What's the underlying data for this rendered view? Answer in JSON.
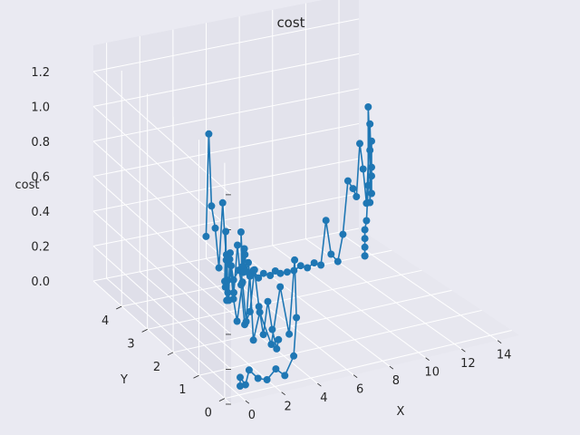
{
  "chart_data": {
    "type": "line3d",
    "title": "cost",
    "xlabel": "X",
    "ylabel": "Y",
    "zlabel": "cost",
    "x_ticks": [
      "0",
      "2",
      "4",
      "6",
      "8",
      "10",
      "12",
      "14"
    ],
    "y_ticks": [
      "0",
      "1",
      "2",
      "3",
      "4"
    ],
    "z_ticks": [
      "0.0",
      "0.2",
      "0.4",
      "0.6",
      "0.8",
      "1.0",
      "1.2"
    ],
    "xlim": [
      -0.8,
      15.2
    ],
    "ylim": [
      -0.25,
      5.1
    ],
    "zlim": [
      0,
      1.35
    ],
    "grid": true,
    "colors": {
      "line": "#1f77b4",
      "pane_back": "#e3e3ec",
      "pane_side": "#dfdfe9",
      "pane_floor": "#e7e7ef",
      "grid": "#ffffff",
      "background": "#eaeaf2"
    },
    "series": [
      {
        "x": [
          0.5,
          0.5,
          0.8,
          1.0,
          1.5,
          2.0,
          2.5,
          3.0,
          3.5,
          3.8,
          4.0,
          4.0,
          3.8,
          3.6,
          3.4,
          3.5,
          3.6,
          3.7,
          3.8,
          3.8,
          3.9,
          4.0,
          4.1,
          4.2,
          4.3,
          4.4,
          4.5,
          4.6,
          4.7,
          4.8,
          5.0,
          5.2,
          5.5,
          5.8,
          6.0,
          6.1,
          6.2,
          6.3,
          6.4,
          6.5,
          6.6,
          6.7,
          6.8,
          7.0,
          7.3,
          7.6,
          8.0,
          8.3,
          8.6,
          9.0,
          9.4,
          9.8,
          10.2,
          10.6,
          11.0,
          11.3,
          11.6,
          12.0,
          12.3,
          12.6,
          12.9,
          13.1,
          13.3,
          13.5,
          13.7,
          13.9,
          14.0,
          14.0,
          14.0,
          14.0,
          13.9,
          13.9,
          13.8,
          13.8,
          13.7,
          13.6,
          13.6,
          13.6,
          13.6,
          13.6
        ],
        "y": [
          0.3,
          0.3,
          0.3,
          0.3,
          0.3,
          0.3,
          0.3,
          0.3,
          0.3,
          0.4,
          0.6,
          0.8,
          1.0,
          1.2,
          1.5,
          1.8,
          2.0,
          2.2,
          2.4,
          2.6,
          2.8,
          3.0,
          3.1,
          3.2,
          3.3,
          3.4,
          3.5,
          3.5,
          3.6,
          3.6,
          3.7,
          3.7,
          3.8,
          3.8,
          3.8,
          3.9,
          3.9,
          3.9,
          4.0,
          4.0,
          4.0,
          4.0,
          4.0,
          4.0,
          4.0,
          4.0,
          4.0,
          4.0,
          4.0,
          4.0,
          4.0,
          4.0,
          4.0,
          4.0,
          4.0,
          4.0,
          4.0,
          4.0,
          4.0,
          4.0,
          4.0,
          4.0,
          4.0,
          4.0,
          4.0,
          4.0,
          4.0,
          4.0,
          4.0,
          4.0,
          4.0,
          4.0,
          4.0,
          4.0,
          4.0,
          4.0,
          4.0,
          4.0,
          4.0,
          4.0
        ],
        "z": [
          0.0,
          0.05,
          0.0,
          0.08,
          0.02,
          0.0,
          0.05,
          0.0,
          0.1,
          0.3,
          0.6,
          0.15,
          0.4,
          0.05,
          0.2,
          0.0,
          0.35,
          0.05,
          0.25,
          0.0,
          0.1,
          0.3,
          0.05,
          0.15,
          0.02,
          0.4,
          0.1,
          0.25,
          0.05,
          0.2,
          0.0,
          0.15,
          0.05,
          0.1,
          0.02,
          0.3,
          0.1,
          0.2,
          0.05,
          0.15,
          0.05,
          0.1,
          0.02,
          0.05,
          0.0,
          0.02,
          0.0,
          0.02,
          0.0,
          0.0,
          0.0,
          0.02,
          0.0,
          0.02,
          0.0,
          0.25,
          0.05,
          0.0,
          0.15,
          0.45,
          0.4,
          0.35,
          0.65,
          0.5,
          0.3,
          0.75,
          0.45,
          0.65,
          0.35,
          0.5,
          0.3,
          0.6,
          0.85,
          0.4,
          0.2,
          0.15,
          0.1,
          0.05,
          0.0,
          0.0
        ]
      },
      {
        "x": [
          4.2,
          4.2,
          4.2,
          4.1,
          4.0,
          3.9,
          3.8,
          3.6,
          3.4,
          3.3,
          3.2,
          3.1,
          3.0,
          3.0,
          3.1,
          3.2,
          3.3,
          3.4,
          3.5,
          3.6,
          3.7
        ],
        "y": [
          4.0,
          3.9,
          3.8,
          3.6,
          3.4,
          3.2,
          3.0,
          2.8,
          2.6,
          2.4,
          2.2,
          2.0,
          1.8,
          1.6,
          1.5,
          1.4,
          1.3,
          1.2,
          1.1,
          1.0,
          1.0
        ],
        "z": [
          0.3,
          0.9,
          0.5,
          0.4,
          0.2,
          0.6,
          0.3,
          0.1,
          0.4,
          0.2,
          0.5,
          0.3,
          0.1,
          0.2,
          0.45,
          0.25,
          0.1,
          0.3,
          0.15,
          0.05,
          0.1
        ]
      }
    ]
  }
}
